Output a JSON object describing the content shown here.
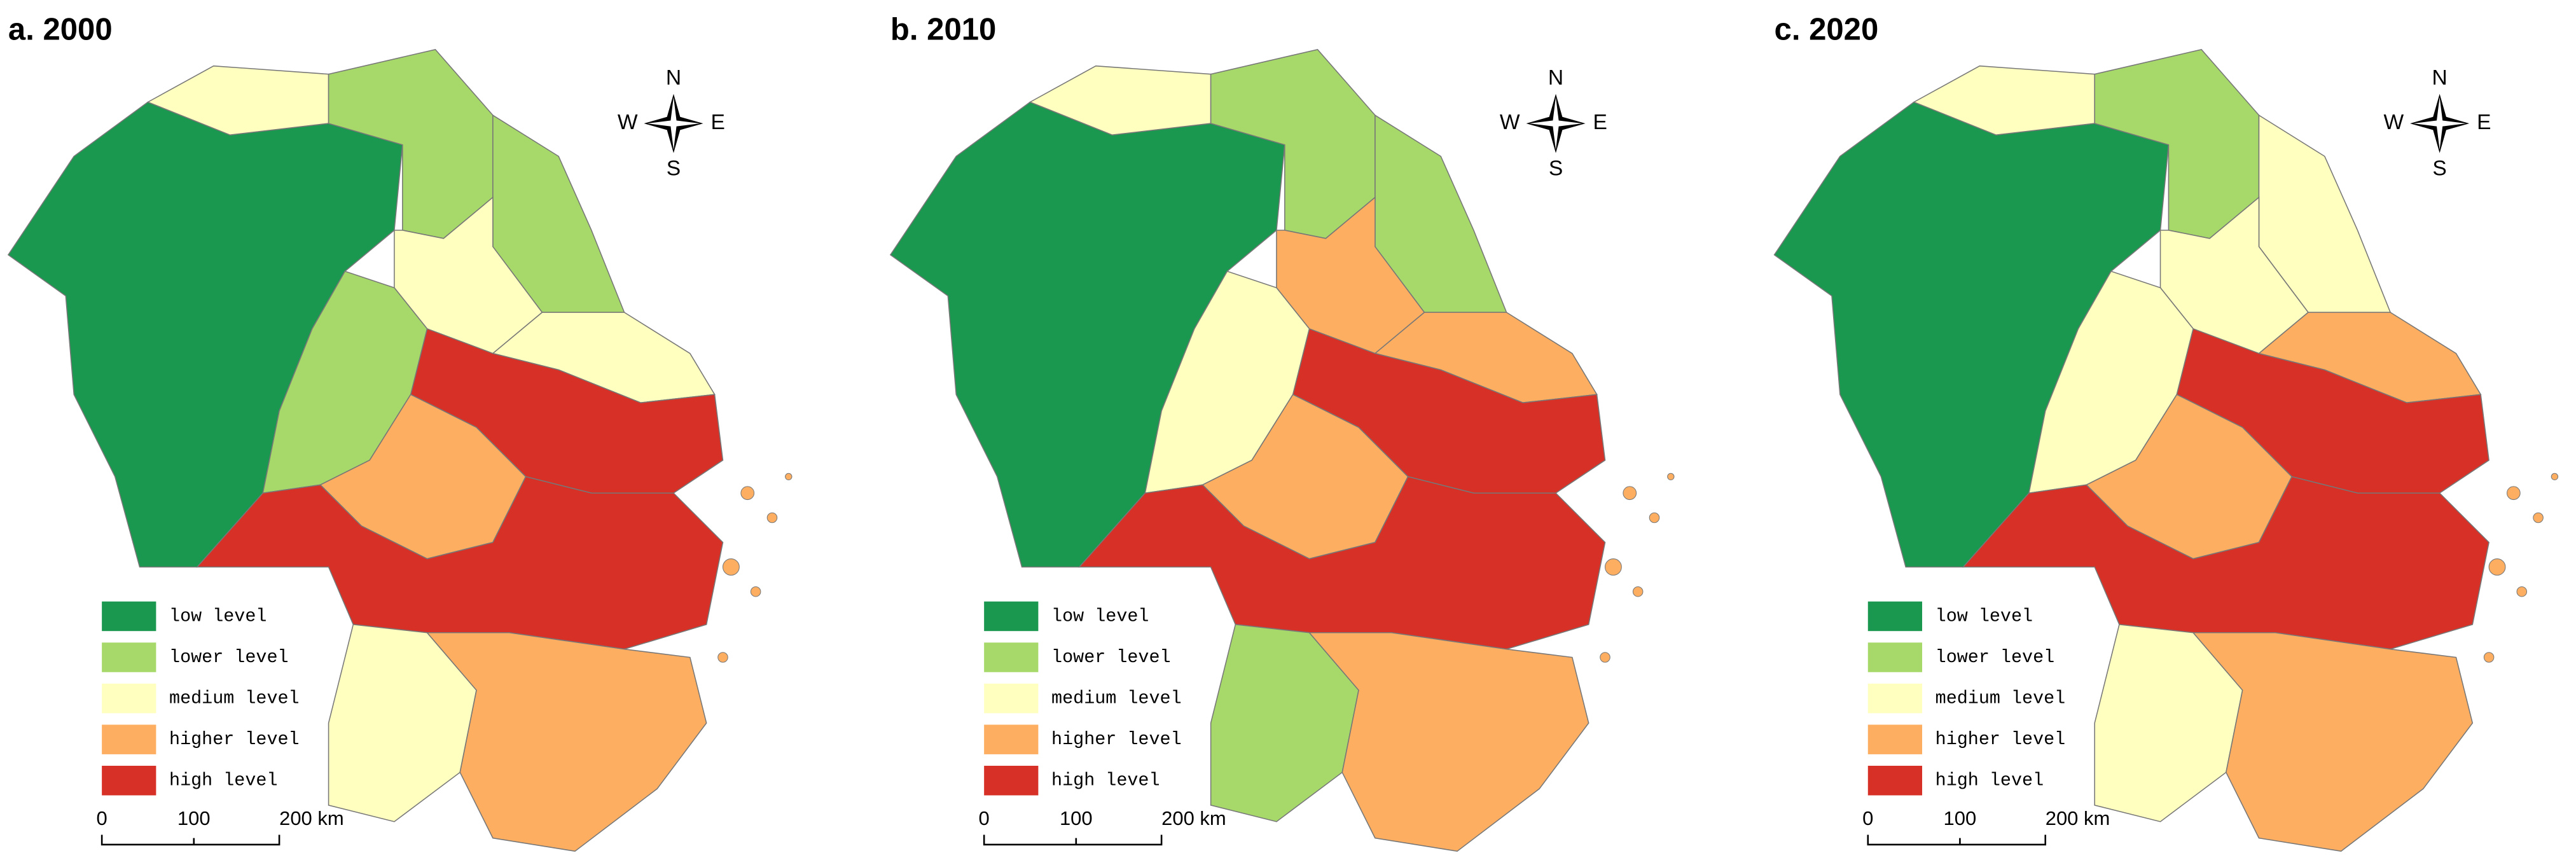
{
  "panels": [
    {
      "title": "a. 2000"
    },
    {
      "title": "b. 2010"
    },
    {
      "title": "c. 2020"
    }
  ],
  "legend": [
    {
      "label": "low level",
      "color": "#1a9850"
    },
    {
      "label": "lower level",
      "color": "#a6d96a"
    },
    {
      "label": "medium level",
      "color": "#ffffbf"
    },
    {
      "label": "higher level",
      "color": "#fdae61"
    },
    {
      "label": "high level",
      "color": "#d73027"
    }
  ],
  "scale_bar": {
    "labels": [
      "0",
      "100",
      "200 km"
    ]
  },
  "compass": {
    "n": "N",
    "s": "S",
    "w": "W",
    "e": "E"
  }
}
